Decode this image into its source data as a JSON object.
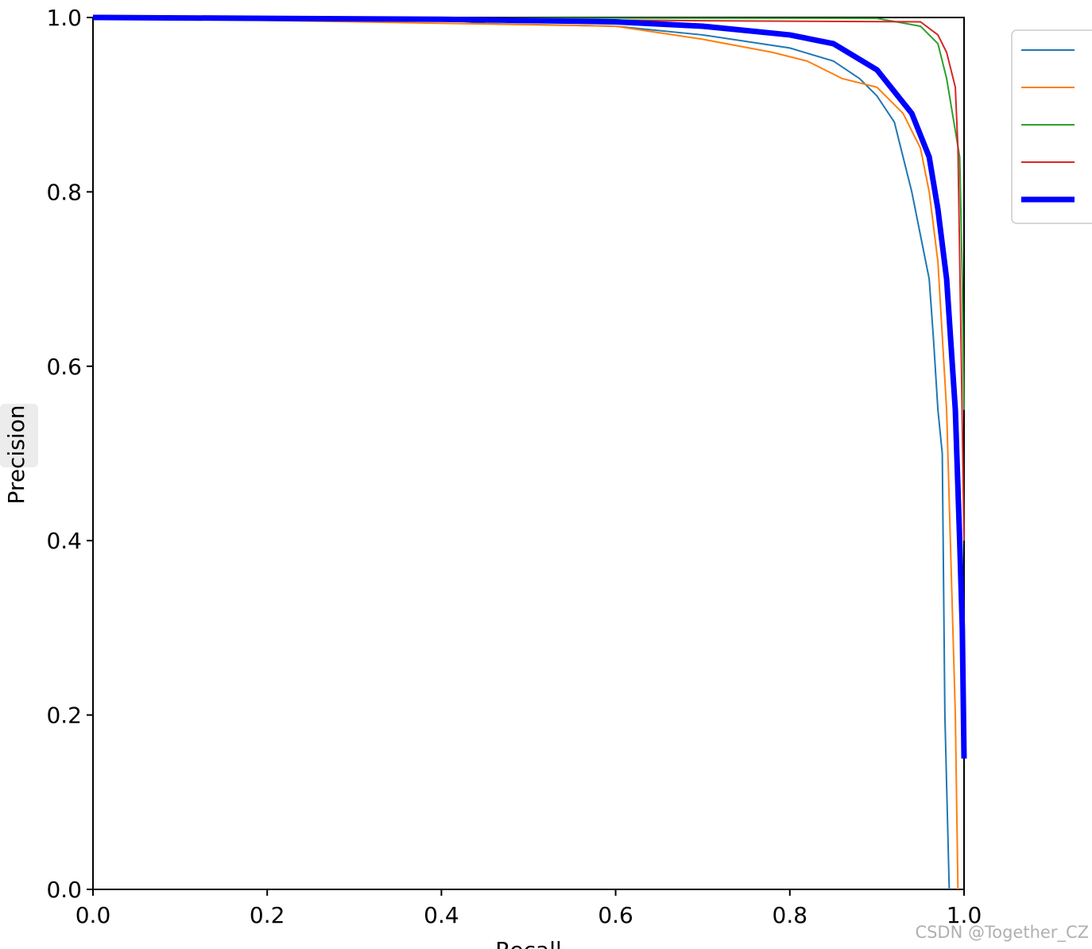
{
  "chart_data": {
    "type": "line",
    "xlabel": "Recall",
    "ylabel": "Precision",
    "xlim": [
      0,
      1
    ],
    "ylim": [
      0,
      1
    ],
    "xticks": [
      {
        "value": 0,
        "label": "0.0"
      },
      0.2,
      0.4,
      0.6,
      0.8,
      {
        "value": 1,
        "label": "1.0"
      }
    ],
    "yticks": [
      {
        "value": 0,
        "label": "0.0"
      },
      0.2,
      0.4,
      0.6,
      0.8,
      {
        "value": 1,
        "label": "1.0"
      }
    ],
    "legend": "right",
    "watermark": "CSDN @Together_CZ",
    "series": [
      {
        "color": "#1f77b4",
        "width": 2,
        "x": [
          0,
          0.4,
          0.45,
          0.6,
          0.7,
          0.8,
          0.85,
          0.88,
          0.9,
          0.92,
          0.93,
          0.94,
          0.95,
          0.96,
          0.965,
          0.97,
          0.975,
          0.978,
          0.983
        ],
        "values": [
          1,
          0.998,
          0.993,
          0.99,
          0.98,
          0.965,
          0.95,
          0.93,
          0.91,
          0.88,
          0.84,
          0.8,
          0.75,
          0.7,
          0.63,
          0.55,
          0.5,
          0.2,
          0
        ]
      },
      {
        "color": "#ff7f0e",
        "width": 2,
        "x": [
          0,
          0.6,
          0.7,
          0.78,
          0.82,
          0.86,
          0.9,
          0.93,
          0.95,
          0.96,
          0.97,
          0.98,
          0.99,
          0.993
        ],
        "values": [
          1,
          0.99,
          0.975,
          0.96,
          0.95,
          0.93,
          0.92,
          0.89,
          0.85,
          0.8,
          0.72,
          0.55,
          0.2,
          0
        ]
      },
      {
        "color": "#2ca02c",
        "width": 2,
        "x": [
          0,
          0.9,
          0.95,
          0.97,
          0.98,
          0.99,
          0.995,
          0.998,
          1
        ],
        "values": [
          1,
          0.999,
          0.99,
          0.97,
          0.93,
          0.87,
          0.84,
          0.7,
          0.55
        ]
      },
      {
        "color": "#d62728",
        "width": 2,
        "x": [
          0,
          0.95,
          0.97,
          0.98,
          0.99,
          0.993,
          0.997,
          1
        ],
        "values": [
          1,
          0.995,
          0.98,
          0.96,
          0.92,
          0.85,
          0.6,
          0.4
        ]
      },
      {
        "color": "#0000ff",
        "width": 7,
        "x": [
          0,
          0.4,
          0.6,
          0.7,
          0.8,
          0.85,
          0.9,
          0.94,
          0.96,
          0.97,
          0.98,
          0.99,
          0.995,
          0.998,
          1
        ],
        "values": [
          1,
          0.998,
          0.995,
          0.99,
          0.98,
          0.97,
          0.94,
          0.89,
          0.84,
          0.78,
          0.7,
          0.55,
          0.4,
          0.3,
          0.15
        ]
      }
    ]
  }
}
